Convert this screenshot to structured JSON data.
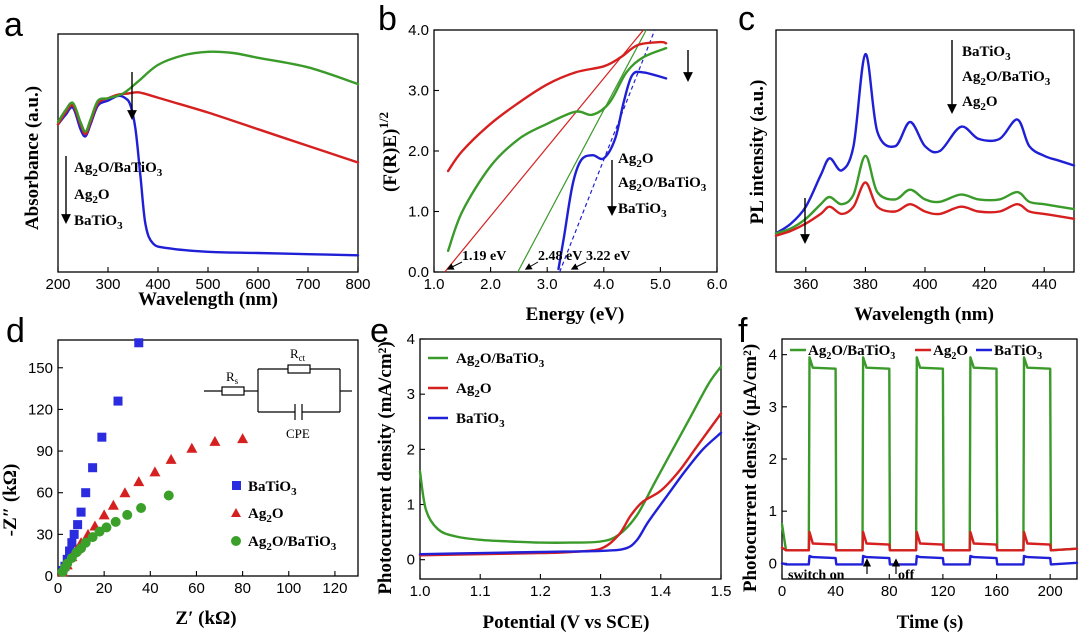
{
  "chart_data": [
    {
      "id": "a",
      "type": "line",
      "panel_label": "a",
      "xlabel": "Wavelength (nm)",
      "ylabel": "Absorbance (a.u.)",
      "xlim": [
        200,
        800
      ],
      "ylim": [
        0,
        1
      ],
      "xticks": [
        "200",
        "300",
        "400",
        "500",
        "600",
        "700",
        "800"
      ],
      "legend": [
        "Ag2O/BaTiO3",
        "Ag2O",
        "BaTiO3"
      ],
      "series": [
        {
          "name": "BaTiO3",
          "color": "#1f1fd6",
          "x": [
            200,
            215,
            230,
            245,
            255,
            265,
            280,
            300,
            320,
            335,
            345,
            355,
            365,
            375,
            390,
            420,
            500,
            600,
            700,
            800
          ],
          "y": [
            0.62,
            0.66,
            0.69,
            0.6,
            0.57,
            0.62,
            0.7,
            0.72,
            0.74,
            0.73,
            0.7,
            0.6,
            0.4,
            0.2,
            0.12,
            0.1,
            0.085,
            0.08,
            0.075,
            0.07
          ]
        },
        {
          "name": "Ag2O",
          "color": "#d62020",
          "x": [
            200,
            215,
            230,
            245,
            255,
            265,
            280,
            300,
            320,
            340,
            360,
            380,
            420,
            500,
            600,
            700,
            800
          ],
          "y": [
            0.62,
            0.67,
            0.7,
            0.62,
            0.58,
            0.63,
            0.71,
            0.73,
            0.745,
            0.75,
            0.755,
            0.745,
            0.72,
            0.67,
            0.6,
            0.53,
            0.46
          ]
        },
        {
          "name": "Ag2O/BaTiO3",
          "color": "#3a9a2a",
          "x": [
            200,
            215,
            230,
            245,
            255,
            265,
            280,
            300,
            330,
            360,
            400,
            450,
            500,
            550,
            600,
            700,
            800
          ],
          "y": [
            0.63,
            0.68,
            0.71,
            0.63,
            0.59,
            0.64,
            0.72,
            0.73,
            0.75,
            0.8,
            0.87,
            0.91,
            0.925,
            0.92,
            0.9,
            0.86,
            0.79
          ]
        }
      ]
    },
    {
      "id": "b",
      "type": "line",
      "panel_label": "b",
      "xlabel": "Energy (eV)",
      "ylabel": "(F(R)E)1/2",
      "xlim": [
        1.0,
        6.0
      ],
      "ylim": [
        0.0,
        4.0
      ],
      "xticks": [
        "1.0",
        "2.0",
        "3.0",
        "4.0",
        "5.0",
        "6.0"
      ],
      "yticks": [
        "0.0",
        "1.0",
        "2.0",
        "3.0",
        "4.0"
      ],
      "legend": [
        "Ag2O",
        "Ag2O/BaTiO3",
        "BaTiO3"
      ],
      "annotations": [
        "1.19 eV",
        "2.48 eV",
        "3.22 eV"
      ],
      "tangents": [
        {
          "color": "#d62020",
          "x1": 1.19,
          "y1": 0,
          "x2": 4.7,
          "y2": 4.0
        },
        {
          "color": "#3a9a2a",
          "x1": 2.48,
          "y1": 0,
          "x2": 4.75,
          "y2": 4.0
        },
        {
          "color": "#1f1fd6",
          "x1": 3.22,
          "y1": 0,
          "x2": 4.9,
          "y2": 4.0
        }
      ],
      "series": [
        {
          "name": "Ag2O",
          "color": "#d62020",
          "x": [
            1.25,
            1.5,
            2.0,
            2.5,
            3.0,
            3.5,
            4.0,
            4.3,
            4.6,
            5.0,
            5.1
          ],
          "y": [
            1.67,
            2.0,
            2.45,
            2.8,
            3.1,
            3.3,
            3.4,
            3.55,
            3.75,
            3.8,
            3.78
          ]
        },
        {
          "name": "Ag2O/BaTiO3",
          "color": "#3a9a2a",
          "x": [
            1.25,
            1.5,
            2.0,
            2.5,
            3.0,
            3.5,
            3.8,
            4.1,
            4.4,
            4.7,
            5.1
          ],
          "y": [
            0.35,
            1.0,
            1.75,
            2.2,
            2.45,
            2.65,
            2.6,
            2.8,
            3.3,
            3.55,
            3.7
          ]
        },
        {
          "name": "BaTiO3",
          "color": "#1f1fd6",
          "x": [
            3.2,
            3.3,
            3.45,
            3.6,
            3.8,
            4.0,
            4.2,
            4.35,
            4.5,
            4.7,
            5.1
          ],
          "y": [
            0.05,
            0.6,
            1.45,
            1.85,
            1.93,
            1.88,
            2.2,
            2.8,
            3.25,
            3.3,
            3.2
          ]
        }
      ]
    },
    {
      "id": "c",
      "type": "line",
      "panel_label": "c",
      "xlabel": "Wavelength (nm)",
      "ylabel": "PL intensity (a.u.)",
      "xlim": [
        350,
        450
      ],
      "ylim": [
        0,
        1
      ],
      "xticks": [
        "360",
        "380",
        "400",
        "420",
        "440"
      ],
      "legend": [
        "BaTiO3",
        "Ag2O/BaTiO3",
        "Ag2O"
      ],
      "series": [
        {
          "name": "BaTiO3",
          "color": "#1f1fd6",
          "x": [
            350,
            355,
            360,
            365,
            368,
            372,
            376,
            380,
            384,
            390,
            395,
            400,
            405,
            412,
            418,
            425,
            431,
            435,
            440,
            445,
            450
          ],
          "y": [
            0.16,
            0.2,
            0.27,
            0.4,
            0.47,
            0.42,
            0.52,
            0.9,
            0.58,
            0.52,
            0.62,
            0.52,
            0.5,
            0.6,
            0.55,
            0.55,
            0.63,
            0.52,
            0.48,
            0.46,
            0.44
          ]
        },
        {
          "name": "Ag2O/BaTiO3",
          "color": "#3a9a2a",
          "x": [
            350,
            355,
            360,
            365,
            368,
            372,
            376,
            380,
            384,
            390,
            395,
            400,
            405,
            412,
            418,
            425,
            431,
            435,
            440,
            445,
            450
          ],
          "y": [
            0.16,
            0.18,
            0.22,
            0.28,
            0.31,
            0.28,
            0.32,
            0.48,
            0.33,
            0.3,
            0.34,
            0.3,
            0.29,
            0.32,
            0.3,
            0.3,
            0.33,
            0.29,
            0.28,
            0.27,
            0.26
          ]
        },
        {
          "name": "Ag2O",
          "color": "#d62020",
          "x": [
            350,
            355,
            360,
            365,
            368,
            372,
            376,
            380,
            384,
            390,
            395,
            400,
            405,
            412,
            418,
            425,
            431,
            435,
            440,
            445,
            450
          ],
          "y": [
            0.15,
            0.17,
            0.2,
            0.24,
            0.27,
            0.24,
            0.27,
            0.37,
            0.27,
            0.25,
            0.28,
            0.25,
            0.24,
            0.27,
            0.25,
            0.25,
            0.28,
            0.25,
            0.24,
            0.23,
            0.22
          ]
        }
      ]
    },
    {
      "id": "d",
      "type": "scatter",
      "panel_label": "d",
      "xlabel": "Z′ (kΩ)",
      "ylabel": "-Z″ (kΩ)",
      "xlim": [
        0,
        130
      ],
      "ylim": [
        0,
        170
      ],
      "xticks": [
        "0",
        "20",
        "40",
        "60",
        "80",
        "100",
        "120"
      ],
      "yticks": [
        "0",
        "30",
        "60",
        "90",
        "120",
        "150"
      ],
      "legend": [
        "BaTiO3",
        "Ag2O",
        "Ag2O/BaTiO3"
      ],
      "circuit_labels": [
        "Rs",
        "Rct",
        "CPE"
      ],
      "series": [
        {
          "name": "BaTiO3",
          "color": "#2b2be0",
          "marker": "square",
          "x": [
            2,
            3,
            4,
            5,
            6,
            7,
            8.5,
            10,
            12,
            15,
            19,
            26,
            35
          ],
          "y": [
            4,
            7,
            12,
            18,
            24,
            30,
            37,
            46,
            60,
            78,
            100,
            126,
            168
          ]
        },
        {
          "name": "Ag2O",
          "color": "#d62020",
          "marker": "triangle",
          "x": [
            2,
            4,
            6,
            8,
            10,
            13,
            16,
            20,
            24,
            29,
            35,
            42,
            49,
            58,
            68,
            80
          ],
          "y": [
            3,
            8,
            14,
            19,
            24,
            30,
            36,
            44,
            51,
            60,
            68,
            75,
            84,
            92,
            97,
            99
          ]
        },
        {
          "name": "Ag2O/BaTiO3",
          "color": "#3aa02a",
          "marker": "circle",
          "x": [
            2,
            3,
            4,
            6,
            8,
            10,
            12,
            15,
            18,
            21,
            25,
            30,
            36,
            48
          ],
          "y": [
            3,
            6,
            9,
            13,
            17,
            20,
            24,
            28,
            32,
            35,
            39,
            44,
            49,
            58
          ]
        }
      ]
    },
    {
      "id": "e",
      "type": "line",
      "panel_label": "e",
      "xlabel": "Potential (V vs SCE)",
      "ylabel": "Photocurrent density (mA/cm²)",
      "xlim": [
        1.0,
        1.5
      ],
      "ylim": [
        -0.35,
        4.0
      ],
      "xticks": [
        "1.0",
        "1.1",
        "1.2",
        "1.3",
        "1.4",
        "1.5"
      ],
      "yticks": [
        "0",
        "1",
        "2",
        "3",
        "4"
      ],
      "legend": [
        "Ag2O/BaTiO3",
        "Ag2O",
        "BaTiO3"
      ],
      "series": [
        {
          "name": "Ag2O/BaTiO3",
          "color": "#3a9a2a",
          "x": [
            1.0,
            1.01,
            1.03,
            1.06,
            1.1,
            1.15,
            1.2,
            1.25,
            1.3,
            1.33,
            1.36,
            1.39,
            1.42,
            1.45,
            1.48,
            1.5
          ],
          "y": [
            1.6,
            0.9,
            0.55,
            0.42,
            0.36,
            0.33,
            0.31,
            0.31,
            0.33,
            0.45,
            0.8,
            1.4,
            2.0,
            2.6,
            3.2,
            3.5
          ]
        },
        {
          "name": "Ag2O",
          "color": "#d62020",
          "x": [
            1.0,
            1.1,
            1.2,
            1.25,
            1.3,
            1.33,
            1.35,
            1.37,
            1.4,
            1.43,
            1.46,
            1.5
          ],
          "y": [
            0.08,
            0.1,
            0.12,
            0.14,
            0.2,
            0.45,
            0.8,
            1.05,
            1.25,
            1.6,
            2.05,
            2.65
          ]
        },
        {
          "name": "BaTiO3",
          "color": "#2020d8",
          "x": [
            1.0,
            1.1,
            1.2,
            1.3,
            1.34,
            1.36,
            1.38,
            1.41,
            1.44,
            1.47,
            1.5
          ],
          "y": [
            0.1,
            0.12,
            0.14,
            0.16,
            0.2,
            0.35,
            0.7,
            1.15,
            1.6,
            2.0,
            2.3
          ]
        }
      ]
    },
    {
      "id": "f",
      "type": "line",
      "panel_label": "f",
      "xlabel": "Time (s)",
      "ylabel": "Photocurrent density (μA/cm²)",
      "xlim": [
        0,
        220
      ],
      "ylim": [
        -0.3,
        4.3
      ],
      "xticks": [
        "0",
        "40",
        "80",
        "120",
        "160",
        "200"
      ],
      "yticks": [
        "0",
        "1",
        "2",
        "3",
        "4"
      ],
      "legend": [
        "Ag2O/BaTiO3",
        "Ag2O",
        "BaTiO3"
      ],
      "annotations": [
        "switch on",
        "off"
      ],
      "cycles_on": [
        [
          20,
          40
        ],
        [
          60,
          80
        ],
        [
          100,
          120
        ],
        [
          140,
          160
        ],
        [
          180,
          200
        ]
      ],
      "series": [
        {
          "name": "Ag2O/BaTiO3",
          "color": "#3a9a2a",
          "on_value": 3.75,
          "on_spike": 3.95,
          "off_value": 0.25,
          "start_spike": 0.75
        },
        {
          "name": "Ag2O",
          "color": "#d62020",
          "on_value": 0.38,
          "on_spike": 0.6,
          "off_value": 0.25,
          "start_spike": 0.3
        },
        {
          "name": "BaTiO3",
          "color": "#2020d8",
          "on_value": 0.12,
          "on_spike": 0.14,
          "off_value": -0.02,
          "start_spike": 0.0
        }
      ]
    }
  ]
}
